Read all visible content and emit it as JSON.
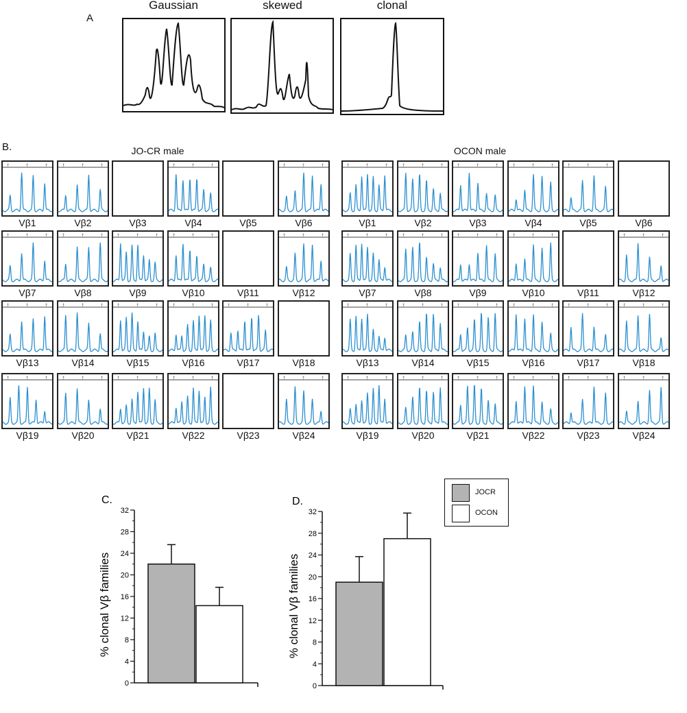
{
  "panel_a": {
    "letter": "A",
    "titles": [
      "Gaussian",
      "skewed",
      "clonal"
    ]
  },
  "panel_b": {
    "letter": "B.",
    "groups": [
      {
        "title": "JO-CR male",
        "labels": [
          "Vβ1",
          "Vβ2",
          "Vβ3",
          "Vβ4",
          "Vβ5",
          "Vβ6",
          "Vβ7",
          "Vβ8",
          "Vβ9",
          "Vβ10",
          "Vβ11",
          "Vβ12",
          "Vβ13",
          "Vβ14",
          "Vβ15",
          "Vβ16",
          "Vβ17",
          "Vβ18",
          "Vβ19",
          "Vβ20",
          "Vβ21",
          "Vβ22",
          "Vβ23",
          "Vβ24"
        ],
        "present": [
          true,
          true,
          false,
          true,
          false,
          true,
          true,
          true,
          true,
          true,
          false,
          true,
          true,
          true,
          true,
          true,
          true,
          false,
          true,
          true,
          true,
          true,
          false,
          true
        ]
      },
      {
        "title": "OCON male",
        "labels": [
          "Vβ1",
          "Vβ2",
          "Vβ3",
          "Vβ4",
          "Vβ5",
          "Vβ6",
          "Vβ7",
          "Vβ8",
          "Vβ9",
          "Vβ10",
          "Vβ11",
          "Vβ12",
          "Vβ13",
          "Vβ14",
          "Vβ15",
          "Vβ16",
          "Vβ17",
          "Vβ18",
          "Vβ19",
          "Vβ20",
          "Vβ21",
          "Vβ22",
          "Vβ23",
          "Vβ24"
        ],
        "present": [
          true,
          true,
          true,
          true,
          true,
          false,
          true,
          true,
          true,
          true,
          false,
          true,
          true,
          true,
          true,
          true,
          true,
          true,
          true,
          true,
          true,
          true,
          true,
          true
        ]
      }
    ],
    "trace_color": "#2b8fd0"
  },
  "legend": {
    "items": [
      {
        "label": "JOCR",
        "color": "#b3b3b3"
      },
      {
        "label": "OCON",
        "color": "#ffffff"
      }
    ]
  },
  "chart_data": [
    {
      "type": "bar",
      "panel": "C.",
      "categories": [
        "JOCR",
        "OCON"
      ],
      "values": [
        22,
        14.3
      ],
      "errors": [
        3.6,
        3.4
      ],
      "ylabel": "% clonal Vβ families",
      "ylim": [
        0,
        32
      ],
      "yticks": [
        0,
        4,
        8,
        12,
        16,
        20,
        24,
        28,
        32
      ],
      "colors": [
        "#b3b3b3",
        "#ffffff"
      ]
    },
    {
      "type": "bar",
      "panel": "D.",
      "categories": [
        "JOCR",
        "OCON"
      ],
      "values": [
        19,
        27
      ],
      "errors": [
        4.7,
        4.7
      ],
      "ylabel": "% clonal Vβ families",
      "ylim": [
        0,
        32
      ],
      "yticks": [
        0,
        4,
        8,
        12,
        16,
        20,
        24,
        28,
        32
      ],
      "colors": [
        "#b3b3b3",
        "#ffffff"
      ]
    }
  ]
}
